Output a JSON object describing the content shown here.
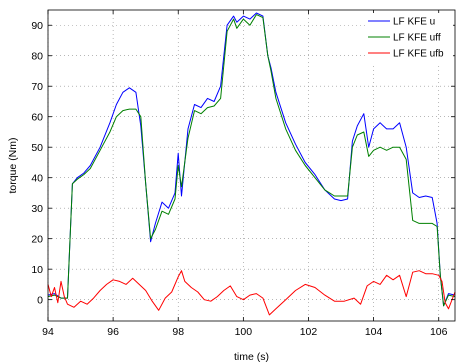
{
  "chart_data": {
    "type": "line",
    "xlabel": "time (s)",
    "ylabel": "torque (Nm)",
    "xlim": [
      94.0,
      106.5
    ],
    "ylim": [
      -7,
      95
    ],
    "grid": true,
    "legend_position": "top-right",
    "x_ticks": [
      94,
      96,
      98,
      100,
      102,
      104,
      106
    ],
    "x_tick_labels": [
      "94",
      "96",
      "98",
      "100",
      "102",
      "104",
      "106"
    ],
    "y_ticks": [
      0,
      10,
      20,
      30,
      40,
      50,
      60,
      70,
      80,
      90
    ],
    "y_tick_labels": [
      "0",
      "10",
      "20",
      "30",
      "40",
      "50",
      "60",
      "70",
      "80",
      "90"
    ],
    "series": [
      {
        "name": "LF KFE u",
        "color": "#0000ff",
        "x": [
          94.0,
          94.2,
          94.4,
          94.6,
          94.75,
          94.9,
          95.1,
          95.3,
          95.6,
          95.9,
          96.1,
          96.3,
          96.5,
          96.7,
          96.85,
          97.0,
          97.15,
          97.3,
          97.5,
          97.7,
          97.9,
          98.0,
          98.1,
          98.3,
          98.5,
          98.7,
          98.9,
          99.1,
          99.3,
          99.5,
          99.7,
          99.8,
          100.0,
          100.2,
          100.4,
          100.6,
          100.75,
          100.85,
          101.0,
          101.3,
          101.6,
          101.9,
          102.2,
          102.5,
          102.8,
          103.0,
          103.2,
          103.35,
          103.5,
          103.7,
          103.85,
          104.0,
          104.2,
          104.4,
          104.6,
          104.8,
          105.0,
          105.2,
          105.4,
          105.6,
          105.8,
          105.95,
          106.05,
          106.15,
          106.3,
          106.5
        ],
        "values": [
          1.5,
          2.0,
          0.5,
          0.5,
          38.0,
          40.0,
          41.5,
          44.0,
          50.0,
          58.0,
          64.0,
          68.0,
          69.5,
          68.0,
          57.0,
          38.0,
          19.0,
          25.0,
          32.0,
          30.0,
          35.0,
          48.0,
          34.0,
          56.0,
          64.0,
          63.0,
          66.0,
          65.0,
          70.0,
          90.0,
          93.0,
          91.0,
          93.0,
          92.0,
          94.0,
          93.0,
          80.0,
          76.0,
          68.0,
          58.0,
          51.0,
          45.0,
          41.0,
          36.0,
          33.0,
          32.5,
          33.0,
          52.0,
          57.0,
          61.0,
          50.0,
          56.0,
          58.0,
          56.0,
          56.0,
          58.0,
          50.0,
          35.0,
          33.5,
          34.0,
          33.5,
          25.0,
          8.0,
          -2.0,
          2.0,
          1.5
        ]
      },
      {
        "name": "LF KFE uff",
        "color": "#008000",
        "x": [
          94.0,
          94.2,
          94.4,
          94.6,
          94.75,
          94.9,
          95.1,
          95.3,
          95.6,
          95.9,
          96.1,
          96.3,
          96.5,
          96.7,
          96.85,
          97.0,
          97.15,
          97.3,
          97.5,
          97.7,
          97.9,
          98.0,
          98.1,
          98.3,
          98.5,
          98.7,
          98.9,
          99.1,
          99.3,
          99.5,
          99.7,
          99.8,
          100.0,
          100.2,
          100.4,
          100.6,
          100.75,
          100.85,
          101.0,
          101.3,
          101.6,
          101.9,
          102.2,
          102.5,
          102.8,
          103.0,
          103.2,
          103.35,
          103.5,
          103.7,
          103.85,
          104.0,
          104.2,
          104.4,
          104.6,
          104.8,
          105.0,
          105.2,
          105.4,
          105.6,
          105.8,
          105.95,
          106.05,
          106.15,
          106.3,
          106.5
        ],
        "values": [
          1.0,
          1.5,
          0.5,
          0.5,
          38.0,
          39.5,
          41.0,
          43.0,
          49.0,
          55.0,
          60.0,
          62.0,
          62.5,
          62.5,
          60.0,
          38.0,
          20.0,
          23.0,
          29.0,
          28.0,
          33.0,
          44.0,
          37.0,
          53.0,
          62.0,
          61.0,
          63.0,
          63.5,
          66.0,
          88.0,
          92.0,
          89.0,
          92.0,
          90.0,
          93.5,
          92.5,
          80.0,
          75.0,
          66.0,
          56.0,
          49.0,
          44.0,
          40.0,
          36.0,
          34.0,
          34.0,
          34.0,
          50.0,
          54.0,
          55.0,
          47.0,
          49.0,
          50.0,
          49.0,
          50.0,
          50.0,
          46.0,
          26.0,
          25.0,
          25.0,
          25.0,
          24.0,
          8.0,
          -2.0,
          1.5,
          1.0
        ]
      },
      {
        "name": "LF KFE ufb",
        "color": "#ff0000",
        "x": [
          94.0,
          94.1,
          94.2,
          94.3,
          94.4,
          94.5,
          94.6,
          94.8,
          95.0,
          95.2,
          95.4,
          95.6,
          95.8,
          96.0,
          96.2,
          96.4,
          96.6,
          96.8,
          97.0,
          97.2,
          97.4,
          97.6,
          97.8,
          98.0,
          98.1,
          98.2,
          98.4,
          98.6,
          98.8,
          99.0,
          99.2,
          99.4,
          99.6,
          99.8,
          100.0,
          100.2,
          100.4,
          100.6,
          100.8,
          101.0,
          101.3,
          101.6,
          101.9,
          102.2,
          102.5,
          102.8,
          103.1,
          103.4,
          103.6,
          103.8,
          104.0,
          104.2,
          104.4,
          104.6,
          104.8,
          105.0,
          105.2,
          105.4,
          105.6,
          105.8,
          106.0,
          106.1,
          106.2,
          106.3,
          106.5
        ],
        "values": [
          5.0,
          1.0,
          4.0,
          -1.0,
          6.0,
          1.0,
          -1.5,
          -2.5,
          -0.5,
          -1.5,
          0.5,
          3.0,
          5.0,
          6.5,
          6.0,
          5.0,
          7.0,
          5.0,
          3.0,
          -0.5,
          -3.5,
          0.5,
          2.5,
          7.5,
          9.5,
          6.0,
          4.0,
          2.5,
          0.0,
          -0.5,
          1.0,
          3.0,
          4.5,
          1.0,
          0.0,
          1.5,
          2.0,
          0.5,
          -5.0,
          -3.0,
          0.0,
          3.0,
          5.0,
          4.0,
          1.5,
          -0.5,
          -0.5,
          0.5,
          -1.5,
          4.5,
          6.0,
          5.0,
          8.0,
          6.5,
          8.0,
          1.0,
          9.0,
          9.5,
          8.5,
          8.5,
          8.0,
          6.0,
          -1.0,
          -3.0,
          2.5
        ]
      }
    ]
  }
}
